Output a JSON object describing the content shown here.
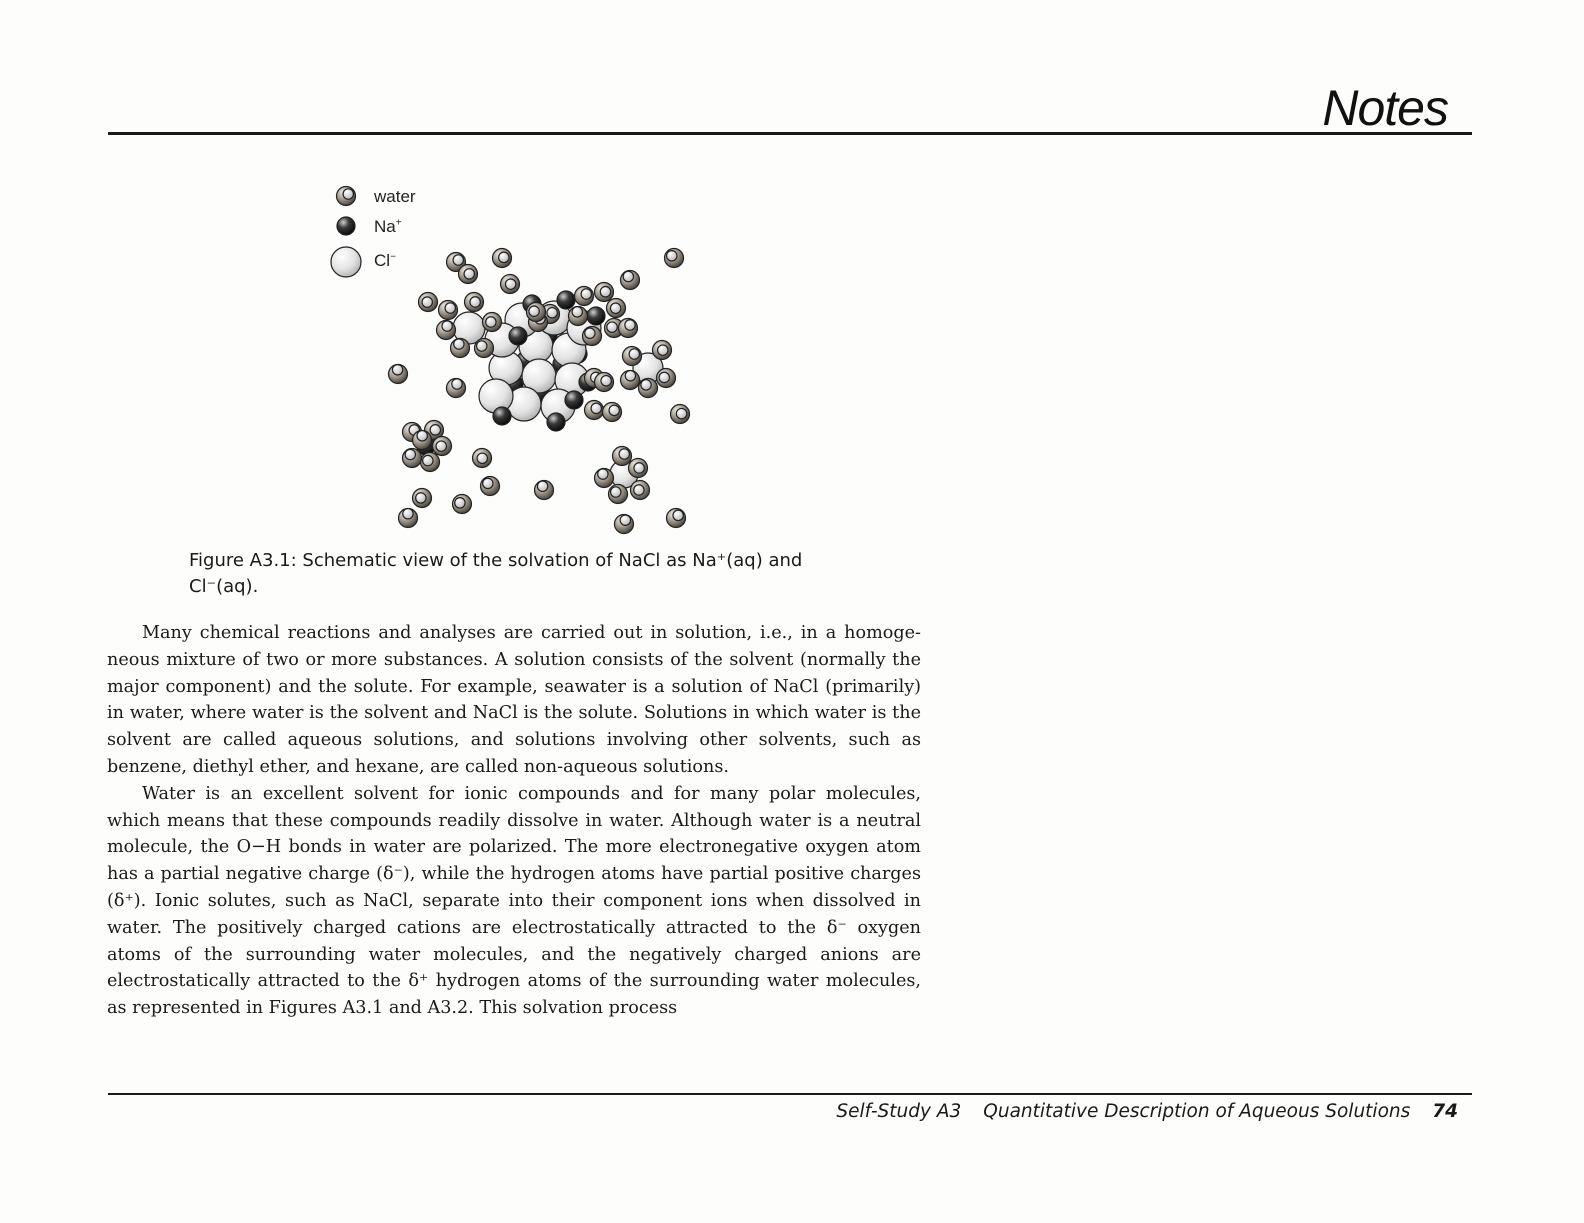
{
  "header": {
    "title": "Notes"
  },
  "figure": {
    "legend": [
      {
        "key": "water",
        "label": "water",
        "color": "#8a8175"
      },
      {
        "key": "na",
        "label": "Na",
        "sup": "+",
        "color": "#2a2a2a"
      },
      {
        "key": "cl",
        "label": "Cl",
        "sup": "−",
        "color": "#e6e6e6"
      }
    ],
    "caption": {
      "label": "Figure A3.1:",
      "text": "Schematic view of the solvation of NaCl as Na⁺(aq) and Cl⁻(aq)."
    }
  },
  "body": {
    "paragraphs": [
      "Many chemical reactions and analyses are carried out in solution, i.e., in a homoge­neous mixture of two or more substances. A solution consists of the solvent (normally the major component) and the solute. For example, seawater is a solution of NaCl (primarily) in water, where water is the solvent and NaCl is the solute. Solutions in which water is the solvent are called aqueous solutions, and solutions involving other solvents, such as benzene, diethyl ether, and hexane, are called non-aqueous solutions.",
      "Water is an excellent solvent for ionic compounds and for many polar molecules, which means that these compounds readily dissolve in water. Although water is a neutral molecule, the O−H bonds in water are polarized. The more electronegative oxygen atom has a partial negative charge (δ⁻), while the hydrogen atoms have partial positive charges (δ⁺). Ionic solutes, such as NaCl, separate into their component ions when dissolved in water. The positively charged cations are electrostatically attracted to the δ⁻ oxygen atoms of the surrounding water molecules, and the negatively charged anions are electrostatically attracted to the δ⁺ hydrogen atoms of the surrounding water molecules, as represented in Figures A3.1 and A3.2. This solvation process"
    ]
  },
  "footer": {
    "section": "Self-Study A3",
    "title": "Quantitative Description of Aqueous Solutions",
    "page": "74"
  }
}
